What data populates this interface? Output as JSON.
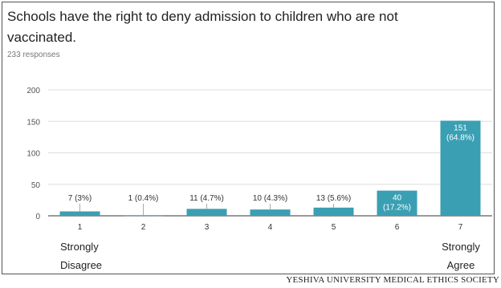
{
  "header": {
    "title": "Schools have the right to deny admission to children who are not vaccinated.",
    "responses": "233 responses"
  },
  "scale_labels": {
    "left_line1": "Strongly",
    "left_line2": "Disagree",
    "right_line1": "Strongly",
    "right_line2": "Agree"
  },
  "footer": "YESHIVA UNIVERSITY MEDICAL ETHICS SOCIETY",
  "colors": {
    "bar": "#3a9fb3",
    "inside_label": "#ffffff",
    "outside_label": "#333333",
    "grid": "#dddddd",
    "axis": "#333333"
  },
  "chart_data": {
    "type": "bar",
    "categories": [
      "1",
      "2",
      "3",
      "4",
      "5",
      "6",
      "7"
    ],
    "values": [
      7,
      1,
      11,
      10,
      13,
      40,
      151
    ],
    "data_labels": [
      "7 (3%)",
      "1 (0.4%)",
      "11 (4.7%)",
      "10 (4.3%)",
      "13 (5.6%)",
      "40\n(17.2%)",
      "151\n(64.8%)"
    ],
    "label_inside": [
      false,
      false,
      false,
      false,
      false,
      true,
      true
    ],
    "yticks": [
      0,
      50,
      100,
      150,
      200
    ],
    "ylim": [
      0,
      200
    ],
    "grid": true
  }
}
